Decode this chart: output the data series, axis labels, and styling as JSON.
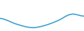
{
  "x": [
    0,
    1,
    2,
    3,
    4,
    5,
    6,
    7,
    8,
    9,
    10,
    11,
    12,
    13,
    14,
    15,
    16,
    17,
    18,
    19,
    20,
    21,
    22,
    23
  ],
  "y": [
    3.5,
    3.0,
    2.2,
    1.2,
    0.2,
    -0.5,
    -1.2,
    -1.8,
    -2.2,
    -2.4,
    -2.2,
    -1.8,
    -1.2,
    -0.5,
    0.3,
    1.2,
    2.2,
    3.4,
    4.8,
    5.8,
    6.2,
    5.8,
    5.2,
    4.8
  ],
  "line_color": "#3a9fd1",
  "linewidth": 1.2,
  "background_color": "#ffffff",
  "ylim": [
    -4.5,
    15
  ]
}
